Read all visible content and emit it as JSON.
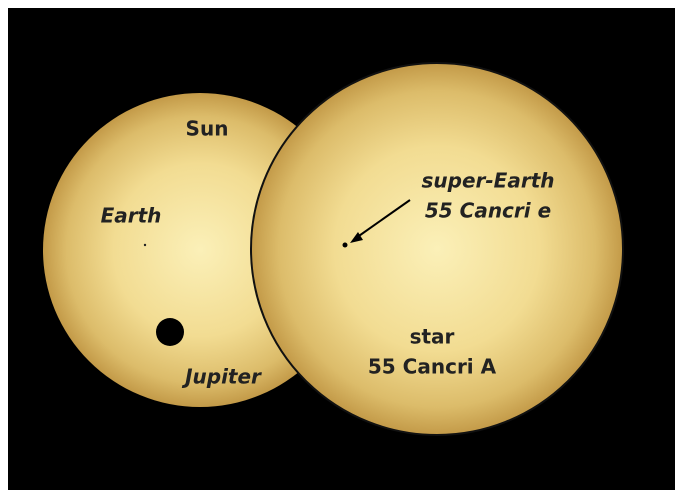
{
  "sun": {
    "label": "Sun",
    "planets": [
      {
        "label": "Earth"
      },
      {
        "label": "Jupiter"
      }
    ]
  },
  "star": {
    "label": [
      "star",
      "55 Cancri A"
    ],
    "planet": {
      "label": [
        "super-Earth",
        "55 Cancri e"
      ]
    }
  }
}
